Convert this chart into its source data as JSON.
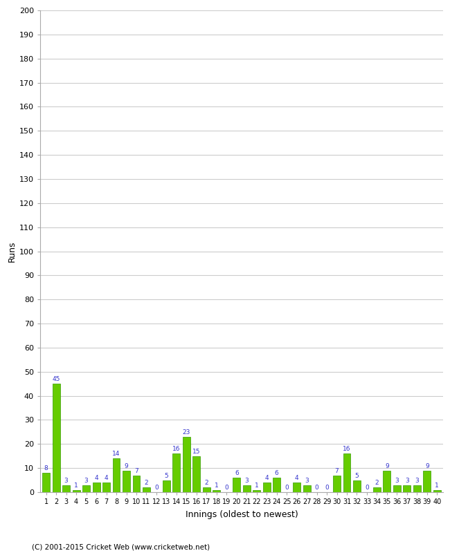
{
  "xlabel": "Innings (oldest to newest)",
  "ylabel": "Runs",
  "categories": [
    "1",
    "2",
    "3",
    "4",
    "5",
    "6",
    "7",
    "8",
    "9",
    "10",
    "11",
    "12",
    "13",
    "14",
    "15",
    "16",
    "17",
    "18",
    "19",
    "20",
    "21",
    "22",
    "23",
    "24",
    "25",
    "26",
    "27",
    "28",
    "29",
    "30",
    "31",
    "32",
    "33",
    "34",
    "35",
    "36",
    "37",
    "38",
    "39",
    "40"
  ],
  "values": [
    8,
    45,
    3,
    1,
    3,
    4,
    4,
    14,
    9,
    7,
    2,
    0,
    5,
    16,
    23,
    15,
    2,
    1,
    0,
    6,
    3,
    1,
    4,
    6,
    0,
    4,
    3,
    0,
    0,
    7,
    16,
    5,
    0,
    2,
    9,
    3,
    3,
    3,
    9,
    1
  ],
  "bar_color": "#66cc00",
  "bar_edge_color": "#339900",
  "label_color": "#3333cc",
  "ylim": [
    0,
    200
  ],
  "yticks": [
    0,
    10,
    20,
    30,
    40,
    50,
    60,
    70,
    80,
    90,
    100,
    110,
    120,
    130,
    140,
    150,
    160,
    170,
    180,
    190,
    200
  ],
  "grid_color": "#cccccc",
  "background_color": "#ffffff",
  "footer": "(C) 2001-2015 Cricket Web (www.cricketweb.net)"
}
